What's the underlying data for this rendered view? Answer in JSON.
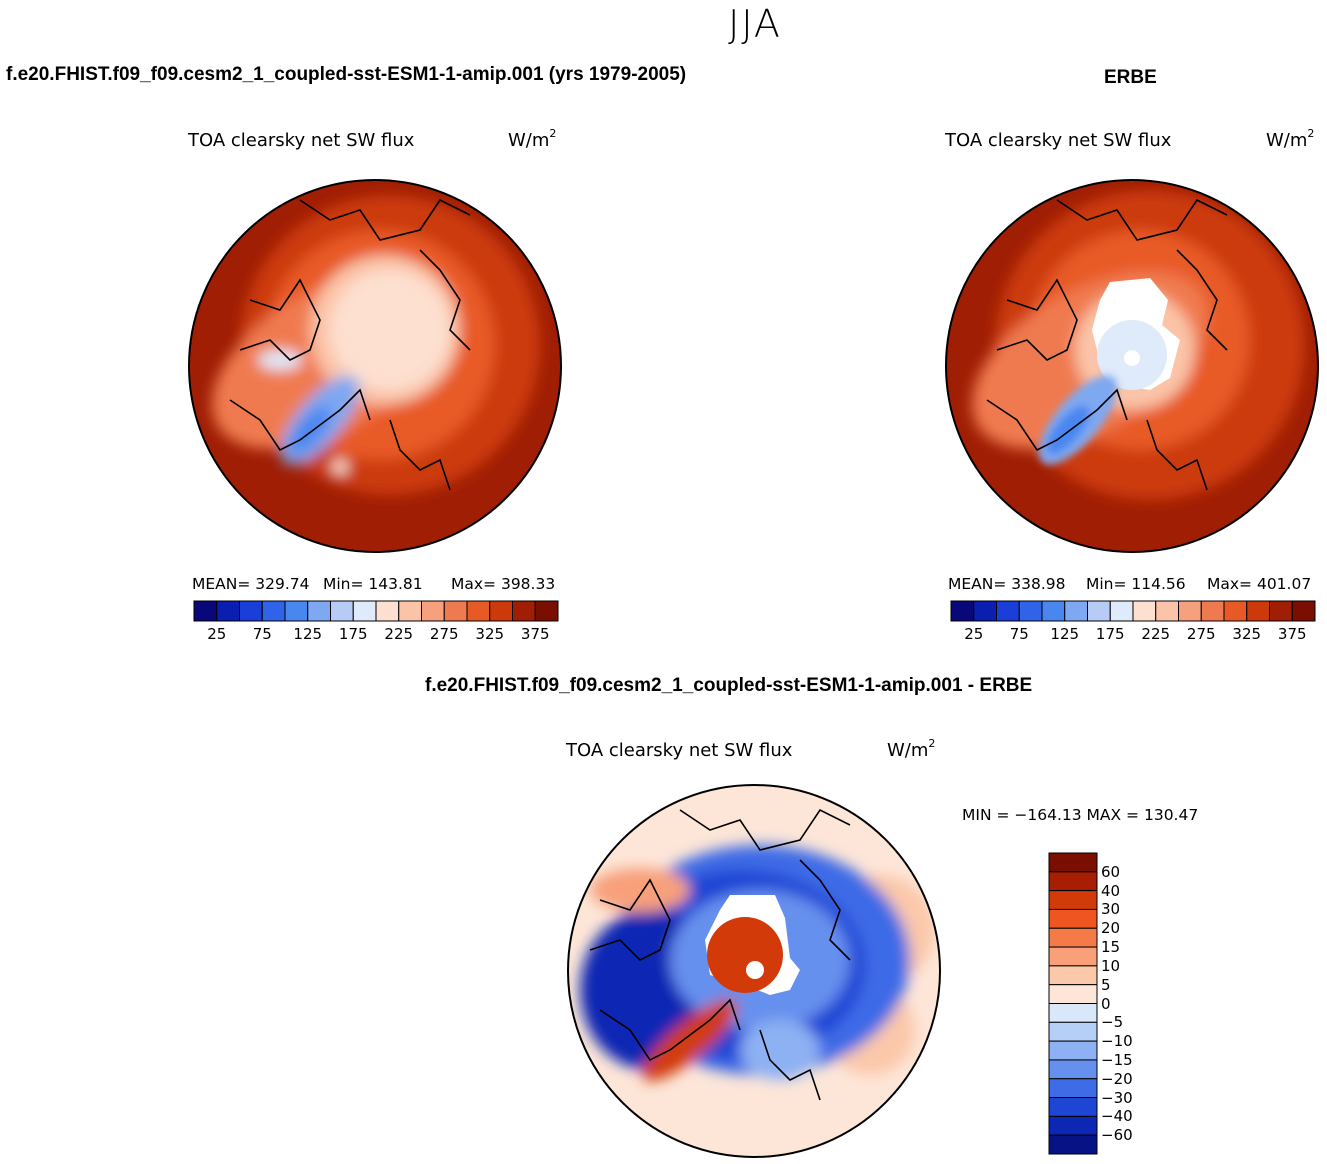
{
  "page": {
    "season": "JJA",
    "left_title": "f.e20.FHIST.f09_f09.cesm2_1_coupled-sst-ESM1-1-amip.001 (yrs 1979-2005)",
    "right_title": "ERBE",
    "diff_title": "f.e20.FHIST.f09_f09.cesm2_1_coupled-sst-ESM1-1-amip.001 - ERBE"
  },
  "colors": {
    "abs_scale": [
      "#08087a",
      "#0a1eb0",
      "#1a3ed8",
      "#2f63e8",
      "#4a86f0",
      "#7ea8f2",
      "#b6ccf6",
      "#dfeafa",
      "#fde0d0",
      "#fbc4a8",
      "#f7a07e",
      "#f07a50",
      "#e85a25",
      "#cc3a0c",
      "#a01e04",
      "#7a0e00"
    ],
    "diff_scale": [
      "#7a0e00",
      "#a81e04",
      "#d23a0a",
      "#ef5520",
      "#f47a48",
      "#f8a07a",
      "#fbc8aa",
      "#fde6d8",
      "#d9e7fb",
      "#b5cff7",
      "#8db1f3",
      "#6690ee",
      "#3e6be6",
      "#1f45d4",
      "#0c27b3",
      "#071384"
    ]
  },
  "chart_data": [
    {
      "type": "heatmap",
      "panel": "model",
      "title": "TOA clearsky net SW flux",
      "units_base": "W/m",
      "units_exp": "2",
      "mean_label": "MEAN= 329.74",
      "min_label": "Min= 143.81",
      "max_label": "Max= 398.33",
      "mean": 329.74,
      "min": 143.81,
      "max": 398.33,
      "colorbar_levels": [
        25,
        50,
        75,
        100,
        125,
        150,
        175,
        200,
        225,
        250,
        275,
        300,
        325,
        350,
        375
      ],
      "colorbar_tick_labels": [
        "25",
        "75",
        "125",
        "175",
        "225",
        "275",
        "325",
        "375"
      ]
    },
    {
      "type": "heatmap",
      "panel": "ERBE",
      "title": "TOA clearsky net SW flux",
      "units_base": "W/m",
      "units_exp": "2",
      "mean_label": "MEAN= 338.98",
      "min_label": "Min= 114.56",
      "max_label": "Max= 401.07",
      "mean": 338.98,
      "min": 114.56,
      "max": 401.07,
      "colorbar_levels": [
        25,
        50,
        75,
        100,
        125,
        150,
        175,
        200,
        225,
        250,
        275,
        300,
        325,
        350,
        375
      ],
      "colorbar_tick_labels": [
        "25",
        "75",
        "125",
        "175",
        "225",
        "275",
        "325",
        "375"
      ]
    },
    {
      "type": "heatmap",
      "panel": "difference",
      "title": "TOA clearsky net SW flux",
      "units_base": "W/m",
      "units_exp": "2",
      "minmax_label": "MIN = −164.13 MAX = 130.47",
      "min": -164.13,
      "max": 130.47,
      "colorbar_levels": [
        60,
        40,
        30,
        20,
        15,
        10,
        5,
        0,
        -5,
        -10,
        -15,
        -20,
        -30,
        -40,
        -60
      ],
      "colorbar_tick_labels": [
        "60",
        "40",
        "30",
        "20",
        "15",
        "10",
        "5",
        "0",
        "−5",
        "−10",
        "−15",
        "−20",
        "−30",
        "−40",
        "−60"
      ]
    }
  ]
}
